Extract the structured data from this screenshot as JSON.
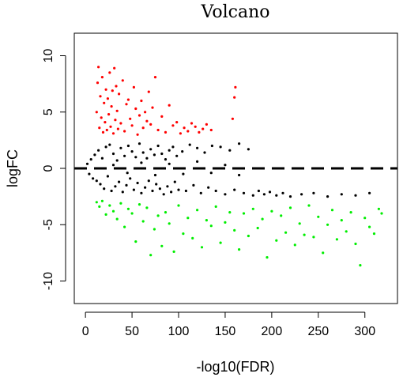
{
  "chart_data": {
    "type": "scatter",
    "title": "Volcano",
    "xlabel": "-log10(FDR)",
    "ylabel": "logFC",
    "xlim": [
      -12,
      335
    ],
    "ylim": [
      -12,
      12
    ],
    "x_ticks": [
      0,
      50,
      100,
      150,
      200,
      250,
      300
    ],
    "y_ticks": [
      -10,
      -5,
      0,
      5,
      10
    ],
    "grid": false,
    "legend": "none",
    "reference_line": {
      "y": 0,
      "style": "dashed"
    },
    "series": [
      {
        "color": "#000000",
        "points": [
          [
            2,
            0.4
          ],
          [
            4,
            -0.5
          ],
          [
            6,
            0.8
          ],
          [
            8,
            -0.9
          ],
          [
            10,
            1.2
          ],
          [
            12,
            -1.1
          ],
          [
            14,
            1.6
          ],
          [
            16,
            -1.4
          ],
          [
            18,
            0.9
          ],
          [
            20,
            -1.8
          ],
          [
            22,
            1.9
          ],
          [
            24,
            -0.7
          ],
          [
            26,
            2.1
          ],
          [
            28,
            -2.0
          ],
          [
            30,
            1.3
          ],
          [
            32,
            -1.6
          ],
          [
            34,
            0.7
          ],
          [
            36,
            -1.2
          ],
          [
            38,
            1.8
          ],
          [
            40,
            -2.1
          ],
          [
            42,
            1.1
          ],
          [
            44,
            -1.5
          ],
          [
            46,
            2.0
          ],
          [
            48,
            -0.9
          ],
          [
            50,
            1.5
          ],
          [
            52,
            -1.9
          ],
          [
            54,
            1.0
          ],
          [
            56,
            -1.3
          ],
          [
            58,
            2.2
          ],
          [
            60,
            -2.2
          ],
          [
            62,
            1.4
          ],
          [
            64,
            -1.7
          ],
          [
            66,
            0.9
          ],
          [
            68,
            -1.1
          ],
          [
            70,
            1.7
          ],
          [
            72,
            -2.0
          ],
          [
            74,
            1.2
          ],
          [
            76,
            -1.4
          ],
          [
            78,
            2.0
          ],
          [
            80,
            -1.8
          ],
          [
            82,
            1.3
          ],
          [
            84,
            -2.3
          ],
          [
            86,
            0.8
          ],
          [
            88,
            -1.6
          ],
          [
            90,
            1.6
          ],
          [
            92,
            -2.1
          ],
          [
            94,
            1.9
          ],
          [
            96,
            -1.2
          ],
          [
            98,
            1.1
          ],
          [
            100,
            -1.9
          ],
          [
            104,
            1.5
          ],
          [
            108,
            -2.0
          ],
          [
            112,
            2.1
          ],
          [
            116,
            -1.5
          ],
          [
            120,
            1.8
          ],
          [
            124,
            -2.2
          ],
          [
            128,
            1.4
          ],
          [
            132,
            -1.7
          ],
          [
            136,
            2.0
          ],
          [
            140,
            -2.0
          ],
          [
            145,
            1.9
          ],
          [
            150,
            -2.3
          ],
          [
            155,
            1.6
          ],
          [
            160,
            -1.9
          ],
          [
            165,
            2.2
          ],
          [
            170,
            -2.2
          ],
          [
            175,
            1.7
          ],
          [
            180,
            -2.4
          ],
          [
            186,
            -2.0
          ],
          [
            192,
            -2.3
          ],
          [
            198,
            -2.1
          ],
          [
            205,
            -2.4
          ],
          [
            212,
            -2.2
          ],
          [
            220,
            -2.5
          ],
          [
            232,
            -2.3
          ],
          [
            245,
            -2.2
          ],
          [
            260,
            -2.5
          ],
          [
            275,
            -2.3
          ],
          [
            290,
            -2.4
          ],
          [
            305,
            -2.2
          ],
          [
            30,
            0.3
          ],
          [
            45,
            -0.4
          ],
          [
            60,
            0.5
          ],
          [
            75,
            -0.6
          ],
          [
            90,
            0.4
          ],
          [
            105,
            -0.5
          ],
          [
            120,
            0.6
          ],
          [
            135,
            -0.4
          ],
          [
            150,
            0.3
          ],
          [
            165,
            -0.6
          ]
        ]
      },
      {
        "color": "#ff0000",
        "points": [
          [
            12,
            5.0
          ],
          [
            13,
            7.6
          ],
          [
            14,
            9.0
          ],
          [
            15,
            3.6
          ],
          [
            16,
            6.4
          ],
          [
            17,
            4.5
          ],
          [
            18,
            8.1
          ],
          [
            19,
            3.2
          ],
          [
            20,
            5.8
          ],
          [
            21,
            4.1
          ],
          [
            22,
            7.0
          ],
          [
            23,
            3.4
          ],
          [
            24,
            6.2
          ],
          [
            25,
            4.8
          ],
          [
            26,
            8.5
          ],
          [
            27,
            3.7
          ],
          [
            28,
            5.5
          ],
          [
            29,
            6.9
          ],
          [
            30,
            3.1
          ],
          [
            31,
            8.9
          ],
          [
            32,
            4.3
          ],
          [
            33,
            7.3
          ],
          [
            34,
            5.1
          ],
          [
            35,
            3.5
          ],
          [
            36,
            6.6
          ],
          [
            38,
            4.0
          ],
          [
            40,
            7.8
          ],
          [
            42,
            3.3
          ],
          [
            44,
            5.7
          ],
          [
            46,
            6.1
          ],
          [
            48,
            4.4
          ],
          [
            50,
            3.8
          ],
          [
            52,
            7.2
          ],
          [
            54,
            5.3
          ],
          [
            56,
            3.0
          ],
          [
            58,
            4.7
          ],
          [
            60,
            6.0
          ],
          [
            62,
            3.6
          ],
          [
            64,
            5.0
          ],
          [
            66,
            4.2
          ],
          [
            68,
            6.8
          ],
          [
            70,
            3.9
          ],
          [
            72,
            5.4
          ],
          [
            75,
            8.1
          ],
          [
            78,
            3.4
          ],
          [
            82,
            4.6
          ],
          [
            86,
            3.2
          ],
          [
            90,
            5.6
          ],
          [
            94,
            3.8
          ],
          [
            98,
            4.1
          ],
          [
            102,
            3.1
          ],
          [
            106,
            3.6
          ],
          [
            110,
            3.3
          ],
          [
            114,
            4.0
          ],
          [
            118,
            3.7
          ],
          [
            122,
            3.2
          ],
          [
            126,
            3.5
          ],
          [
            130,
            3.9
          ],
          [
            135,
            3.4
          ],
          [
            158,
            4.4
          ],
          [
            160,
            6.3
          ],
          [
            161,
            7.2
          ]
        ]
      },
      {
        "color": "#00ee00",
        "points": [
          [
            12,
            -3.0
          ],
          [
            15,
            -3.4
          ],
          [
            18,
            -2.9
          ],
          [
            22,
            -4.1
          ],
          [
            26,
            -3.3
          ],
          [
            30,
            -3.8
          ],
          [
            34,
            -4.5
          ],
          [
            38,
            -3.1
          ],
          [
            42,
            -5.2
          ],
          [
            46,
            -3.6
          ],
          [
            50,
            -4.0
          ],
          [
            54,
            -6.5
          ],
          [
            58,
            -3.2
          ],
          [
            62,
            -4.7
          ],
          [
            66,
            -3.5
          ],
          [
            70,
            -7.7
          ],
          [
            74,
            -5.4
          ],
          [
            78,
            -4.2
          ],
          [
            82,
            -6.9
          ],
          [
            86,
            -3.9
          ],
          [
            90,
            -4.9
          ],
          [
            95,
            -7.4
          ],
          [
            100,
            -3.3
          ],
          [
            105,
            -5.8
          ],
          [
            110,
            -4.4
          ],
          [
            115,
            -6.2
          ],
          [
            120,
            -3.7
          ],
          [
            125,
            -7.0
          ],
          [
            130,
            -4.6
          ],
          [
            135,
            -5.1
          ],
          [
            140,
            -3.4
          ],
          [
            145,
            -6.6
          ],
          [
            150,
            -4.8
          ],
          [
            155,
            -3.9
          ],
          [
            160,
            -5.5
          ],
          [
            165,
            -7.2
          ],
          [
            170,
            -4.0
          ],
          [
            175,
            -6.0
          ],
          [
            180,
            -3.6
          ],
          [
            185,
            -5.3
          ],
          [
            190,
            -4.5
          ],
          [
            195,
            -7.9
          ],
          [
            200,
            -3.8
          ],
          [
            205,
            -6.4
          ],
          [
            210,
            -4.2
          ],
          [
            215,
            -5.7
          ],
          [
            220,
            -3.5
          ],
          [
            225,
            -6.8
          ],
          [
            230,
            -4.9
          ],
          [
            235,
            -5.9
          ],
          [
            240,
            -3.3
          ],
          [
            245,
            -6.1
          ],
          [
            250,
            -4.3
          ],
          [
            255,
            -7.5
          ],
          [
            260,
            -5.0
          ],
          [
            265,
            -3.7
          ],
          [
            270,
            -6.3
          ],
          [
            275,
            -4.6
          ],
          [
            280,
            -5.6
          ],
          [
            285,
            -3.9
          ],
          [
            290,
            -6.7
          ],
          [
            295,
            -8.6
          ],
          [
            300,
            -4.4
          ],
          [
            305,
            -5.2
          ],
          [
            310,
            -5.8
          ],
          [
            315,
            -3.6
          ],
          [
            318,
            -4.0
          ]
        ]
      }
    ]
  }
}
